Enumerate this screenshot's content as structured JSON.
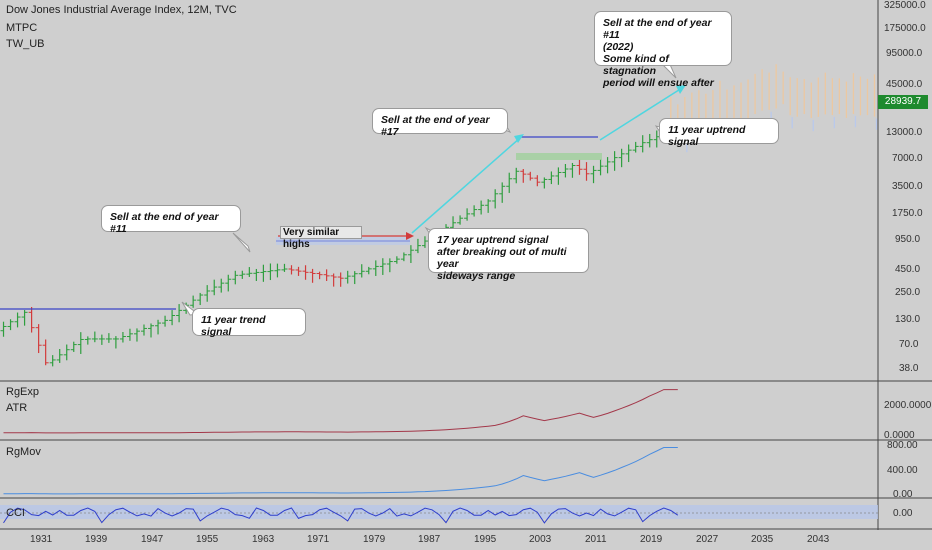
{
  "header": {
    "title": "Dow Jones Industrial Average Index, 12M, TVC",
    "indicators": [
      "MTPC",
      "TW_UB"
    ]
  },
  "price_axis": {
    "ticks": [
      "325000.0",
      "175000.0",
      "95000.0",
      "45000.0",
      "13000.0",
      "7000.0",
      "3500.0",
      "1750.0",
      "950.0",
      "450.0",
      "250.0",
      "130.0",
      "70.0",
      "38.0"
    ],
    "current_price": "28939.7",
    "current_price_color": "#1e8a2e"
  },
  "time_axis": {
    "ticks": [
      "1931",
      "1939",
      "1947",
      "1955",
      "1963",
      "1971",
      "1979",
      "1987",
      "1995",
      "2003",
      "2011",
      "2019",
      "2027",
      "2035",
      "2043"
    ]
  },
  "annotations": {
    "sell_11_first": "Sell at the end of year #11",
    "trend_signal_11": "11 year trend signal",
    "very_similar_highs": "Very similar highs",
    "uptrend_17_line1": "17 year uptrend signal",
    "uptrend_17_line2": "after breaking out of multi year",
    "uptrend_17_line3": "sideways range",
    "sell_17": "Sell at the end of year #17",
    "uptrend_11": "11 year uptrend signal",
    "sell_11_second_line1": "Sell at the end of year #11",
    "sell_11_second_line2": "(2022)",
    "sell_11_second_line3": "Some kind of stagnation",
    "sell_11_second_line4": "period will ensue after"
  },
  "panes": {
    "rgexp": {
      "labels": [
        "RgExp",
        "ATR"
      ],
      "ticks": [
        "2000.0000",
        "0.0000"
      ]
    },
    "rgmov": {
      "label": "RgMov",
      "ticks": [
        "800.00",
        "400.00",
        "0.00"
      ]
    },
    "cci": {
      "label": "CCI",
      "ticks": [
        "0.00"
      ]
    }
  },
  "colors": {
    "up": "#2e9e3e",
    "down": "#d23b3b",
    "projection_up": "#f2c79a",
    "projection_down": "#b9c9ec",
    "range_line": "#3a43c8",
    "cyan": "#4fd6e0"
  },
  "chart_data": {
    "type": "candlestick",
    "title": "Dow Jones Industrial Average Index, 12M, TVC",
    "y_scale": "log",
    "ylim": [
      38,
      325000
    ],
    "x_range": [
      "1925",
      "2050"
    ],
    "last_value": 28939.7,
    "approx_yearly_close": [
      {
        "x": 1925,
        "y": 150
      },
      {
        "x": 1929,
        "y": 250
      },
      {
        "x": 1932,
        "y": 60
      },
      {
        "x": 1937,
        "y": 120
      },
      {
        "x": 1942,
        "y": 120
      },
      {
        "x": 1949,
        "y": 200
      },
      {
        "x": 1954,
        "y": 400
      },
      {
        "x": 1959,
        "y": 680
      },
      {
        "x": 1966,
        "y": 800
      },
      {
        "x": 1974,
        "y": 620
      },
      {
        "x": 1982,
        "y": 1050
      },
      {
        "x": 1987,
        "y": 1950
      },
      {
        "x": 1991,
        "y": 3200
      },
      {
        "x": 1995,
        "y": 5100
      },
      {
        "x": 1999,
        "y": 11500
      },
      {
        "x": 2002,
        "y": 8300
      },
      {
        "x": 2007,
        "y": 13300
      },
      {
        "x": 2009,
        "y": 10400
      },
      {
        "x": 2013,
        "y": 16500
      },
      {
        "x": 2017,
        "y": 24700
      },
      {
        "x": 2019,
        "y": 28939.7
      }
    ]
  }
}
